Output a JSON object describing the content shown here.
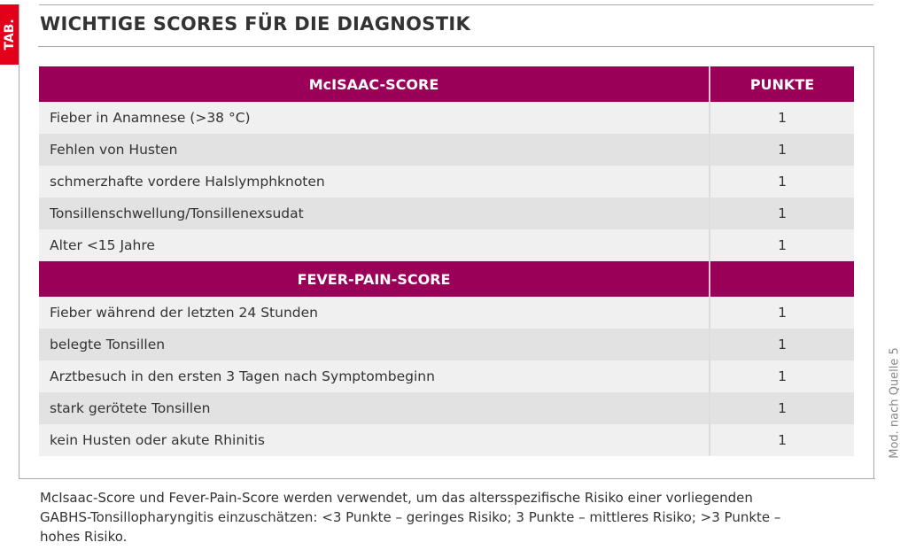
{
  "tab_label": "TAB.",
  "title": "WICHTIGE SCORES FÜR DIE DIAGNOSTIK",
  "sections": [
    {
      "header": "McISAAC-SCORE",
      "points_header": "PUNKTE",
      "rows": [
        {
          "criterion": "Fieber in Anamnese (>38 °C)",
          "points": "1"
        },
        {
          "criterion": "Fehlen von Husten",
          "points": "1"
        },
        {
          "criterion": "schmerzhafte vordere Halslymphknoten",
          "points": "1"
        },
        {
          "criterion": "Tonsillenschwellung/Tonsillenexsudat",
          "points": "1"
        },
        {
          "criterion": "Alter <15 Jahre",
          "points": "1"
        }
      ]
    },
    {
      "header": "FEVER-PAIN-SCORE",
      "points_header": "",
      "rows": [
        {
          "criterion": "Fieber während der letzten 24 Stunden",
          "points": "1"
        },
        {
          "criterion": "belegte Tonsillen",
          "points": "1"
        },
        {
          "criterion": "Arztbesuch in den ersten 3 Tagen nach Symptombeginn",
          "points": "1"
        },
        {
          "criterion": "stark gerötete Tonsillen",
          "points": "1"
        },
        {
          "criterion": "kein Husten oder akute Rhinitis",
          "points": "1"
        }
      ]
    }
  ],
  "source": "Mod. nach Quelle 5",
  "caption": "McIsaac-Score und Fever-Pain-Score werden verwendet, um das altersspezifische Risiko einer vorliegenden GABHS-Tonsillopharyngitis einzuschätzen: <3 Punkte – geringes Risiko; 3 Punkte – mittleres Risiko; >3 Punkte – hohes Risiko.",
  "colors": {
    "header": "#9a0058",
    "tab": "#e2001a",
    "row_light": "#f0f0f0",
    "row_dark": "#e2e2e2"
  }
}
